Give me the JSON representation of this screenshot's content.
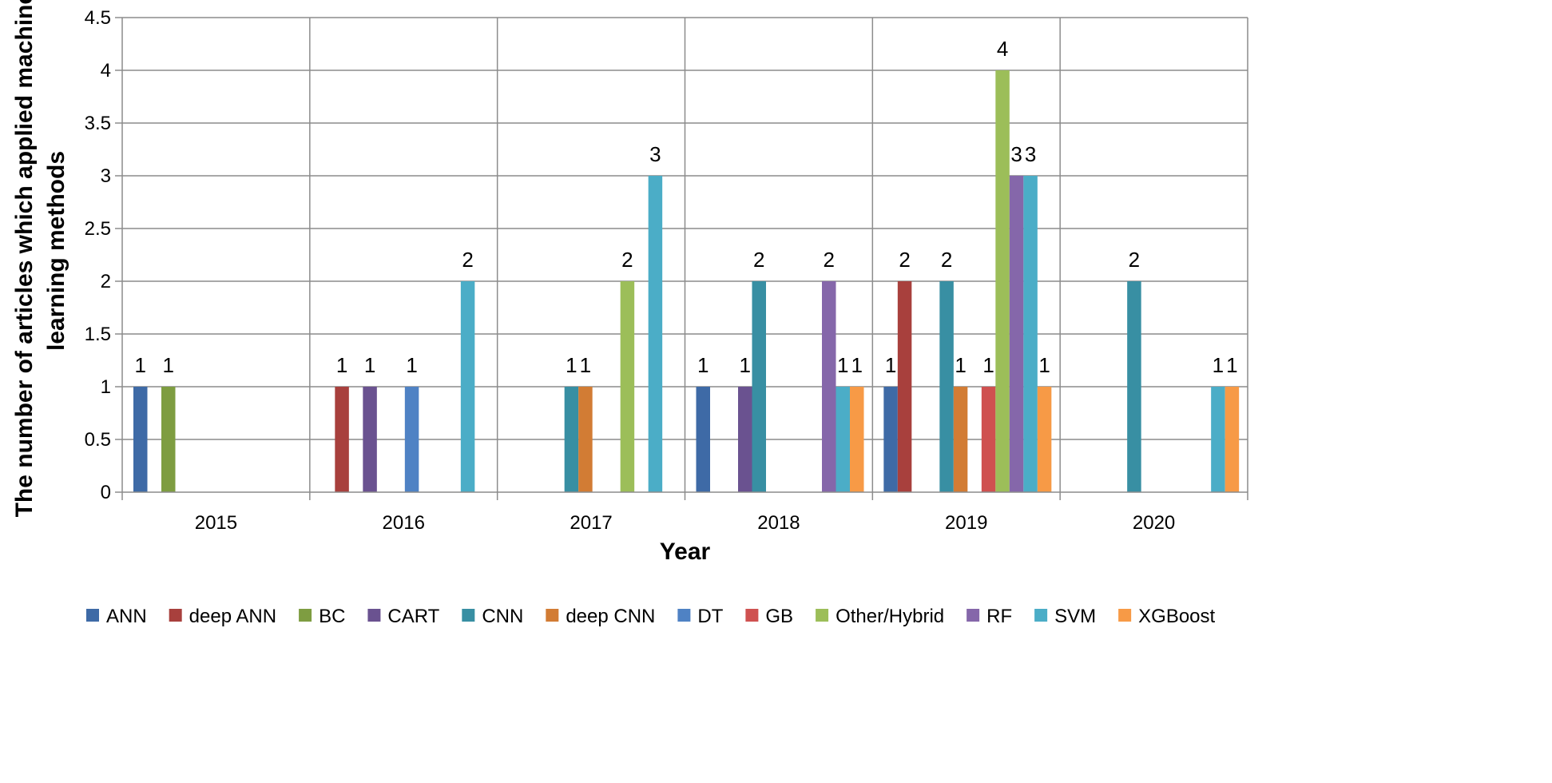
{
  "chart_data": {
    "type": "bar",
    "title": "",
    "xlabel": "Year",
    "ylabel_lines": [
      "The number of articles which applied machine",
      "learning methods"
    ],
    "ylim": [
      0,
      4.5
    ],
    "ytick_step": 0.5,
    "ytick_labels": [
      "0",
      "0.5",
      "1",
      "1.5",
      "2",
      "2.5",
      "3",
      "3.5",
      "4",
      "4.5"
    ],
    "categories": [
      "2015",
      "2016",
      "2017",
      "2018",
      "2019",
      "2020"
    ],
    "grid": true,
    "legend_position": "bottom",
    "series": [
      {
        "name": "ANN",
        "color": "#3E6AA6",
        "values": [
          1,
          0,
          0,
          1,
          1,
          0
        ]
      },
      {
        "name": "deep ANN",
        "color": "#A8403D",
        "values": [
          0,
          1,
          0,
          0,
          2,
          0
        ]
      },
      {
        "name": "BC",
        "color": "#7E9D41",
        "values": [
          1,
          0,
          0,
          0,
          0,
          0
        ]
      },
      {
        "name": "CART",
        "color": "#6A5290",
        "values": [
          0,
          1,
          0,
          1,
          0,
          0
        ]
      },
      {
        "name": "CNN",
        "color": "#388FA3",
        "values": [
          0,
          0,
          1,
          2,
          2,
          2
        ]
      },
      {
        "name": "deep CNN",
        "color": "#D27C34",
        "values": [
          0,
          0,
          1,
          0,
          1,
          0
        ]
      },
      {
        "name": "DT",
        "color": "#4F82C4",
        "values": [
          0,
          1,
          0,
          0,
          0,
          0
        ]
      },
      {
        "name": "GB",
        "color": "#CF5150",
        "values": [
          0,
          0,
          0,
          0,
          1,
          0
        ]
      },
      {
        "name": "Other/Hybrid",
        "color": "#9CBE59",
        "values": [
          0,
          0,
          2,
          0,
          4,
          0
        ]
      },
      {
        "name": "RF",
        "color": "#8567AA",
        "values": [
          0,
          0,
          0,
          2,
          3,
          0
        ]
      },
      {
        "name": "SVM",
        "color": "#4BADC7",
        "values": [
          0,
          2,
          3,
          1,
          3,
          1
        ]
      },
      {
        "name": "XGBoost",
        "color": "#F79A46",
        "values": [
          0,
          0,
          0,
          1,
          1,
          1
        ]
      }
    ]
  }
}
